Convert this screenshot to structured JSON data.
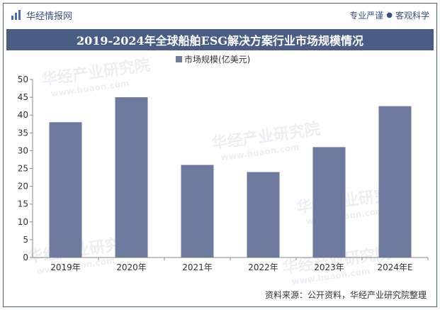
{
  "header": {
    "brand": "华经情报网",
    "tagline_left": "专业严谨",
    "tagline_right": "客观科学"
  },
  "title": "2019-2024年全球船舶ESG解决方案行业市场规模情况",
  "source": "资料来源：公开资料，华经产业研究院整理",
  "watermark": "华经产业研究院",
  "watermark_url": "www.huaon.com",
  "colors": {
    "bar": "#6b7a9d",
    "frame": "#4a5e85",
    "axis": "#888888"
  },
  "chart_data": {
    "type": "bar",
    "categories": [
      "2019年",
      "2020年",
      "2021年",
      "2022年",
      "2023年",
      "2024年E"
    ],
    "series": [
      {
        "name": "市场规模(亿美元)",
        "values": [
          38,
          45,
          26,
          24,
          31,
          42.5
        ]
      }
    ],
    "ylim": [
      0,
      50
    ],
    "yticks": [
      0,
      5,
      10,
      15,
      20,
      25,
      30,
      35,
      40,
      45,
      50
    ],
    "legend": "top-center",
    "grid": false
  }
}
